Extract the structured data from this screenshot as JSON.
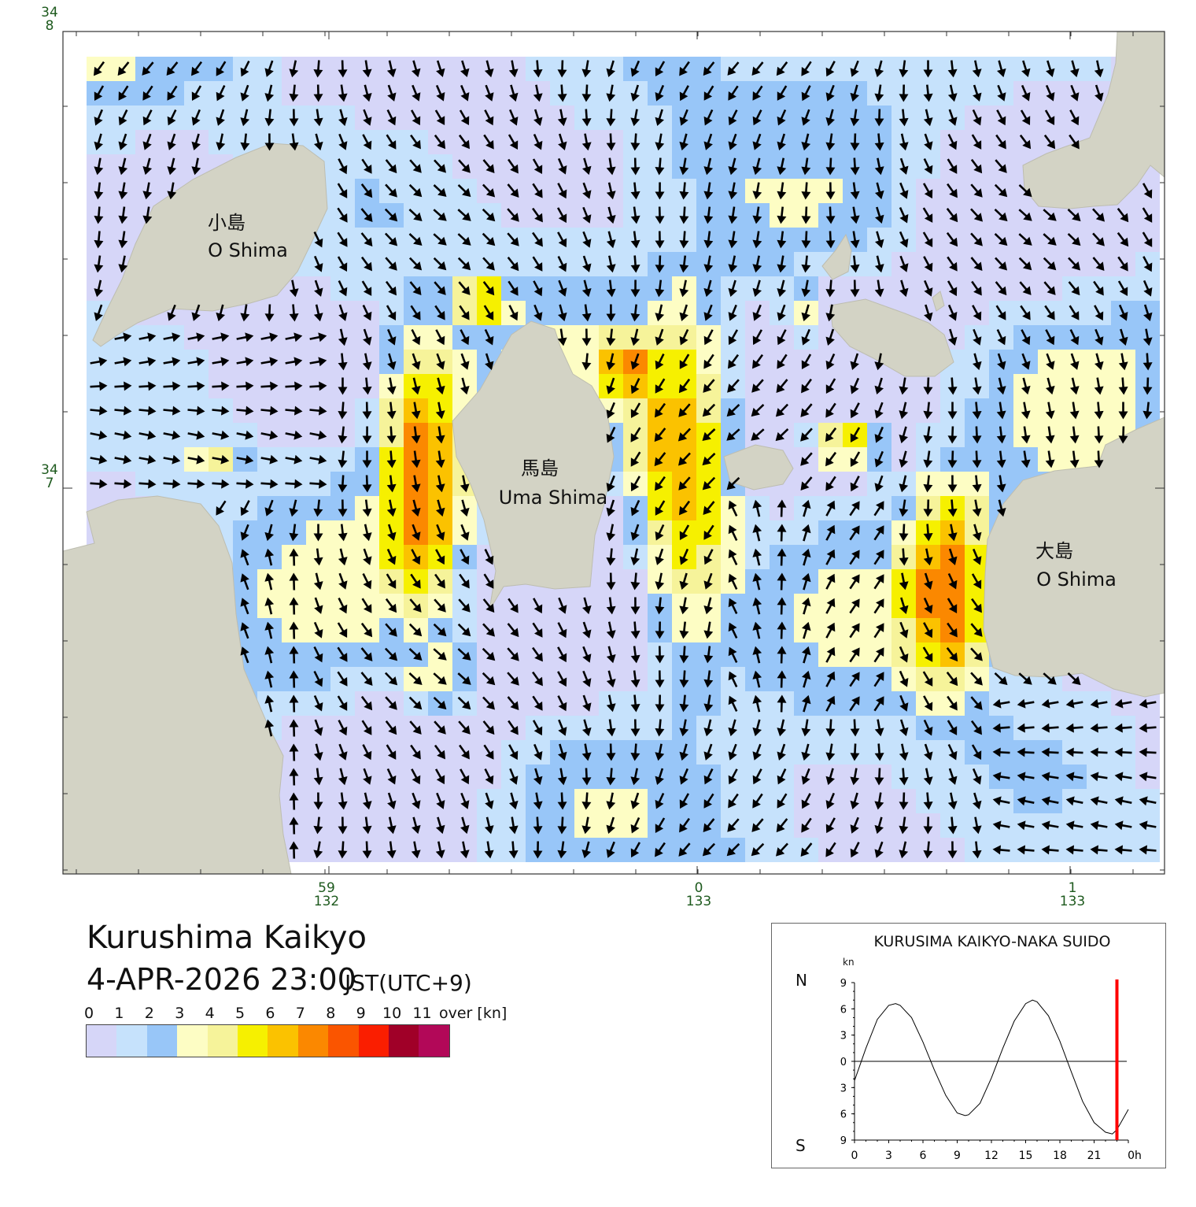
{
  "map": {
    "title": "Kurushima Kaikyo",
    "datetime": "4-APR-2026 23:00",
    "timezone": "JST(UTC+9)",
    "lat_labels": [
      {
        "deg": "34",
        "min": "8",
        "label_id": "lat-34-8"
      },
      {
        "deg": "34",
        "min": "7",
        "label_id": "lat-34-7"
      }
    ],
    "lon_labels": [
      {
        "min": "59",
        "deg": "132"
      },
      {
        "min": "0",
        "deg": "133"
      },
      {
        "min": "1",
        "deg": "133"
      }
    ],
    "places": [
      {
        "ja": "小島",
        "en": "O Shima"
      },
      {
        "ja": "馬島",
        "en": "Uma Shima"
      },
      {
        "ja": "大島",
        "en": "O Shima"
      }
    ],
    "land_color": "#d3d3c5",
    "arrow_color": "#000000"
  },
  "legend": {
    "labels": [
      "0",
      "1",
      "2",
      "3",
      "4",
      "5",
      "6",
      "7",
      "8",
      "9",
      "10",
      "11"
    ],
    "over_label": "over",
    "unit": "[kn]",
    "colors": [
      "#d6d6f8",
      "#c6e2fc",
      "#98c6f8",
      "#fdfdc4",
      "#f6f39a",
      "#f6f000",
      "#fbc200",
      "#fb8800",
      "#fa5500",
      "#fa1e00",
      "#a00028",
      "#b20858"
    ]
  },
  "tide_chart": {
    "title": "KURUSIMA KAIKYO-NAKA SUIDO",
    "unit": "kn",
    "north_label": "N",
    "south_label": "S",
    "y_ticks": [
      "9",
      "6",
      "3",
      "0",
      "3",
      "6",
      "9"
    ],
    "x_ticks": [
      "0",
      "3",
      "6",
      "9",
      "12",
      "15",
      "18",
      "21",
      "0h"
    ],
    "current_marker_color": "#ff0000"
  },
  "chart_data": {
    "type": "line",
    "title": "KURUSIMA KAIKYO-NAKA SUIDO",
    "xlabel": "h",
    "ylabel": "kn",
    "xlim": [
      0,
      24
    ],
    "ylim": [
      -9,
      9
    ],
    "series": [
      {
        "x": [
          0,
          1,
          2,
          3,
          3.6,
          4,
          5,
          6,
          7,
          8,
          9,
          9.7,
          10,
          11,
          12,
          13,
          14,
          15,
          15.6,
          16,
          17,
          18,
          19,
          20,
          21,
          22,
          22.6,
          23,
          24
        ],
        "values": [
          -2.2,
          1.5,
          4.8,
          6.4,
          6.6,
          6.4,
          5.0,
          2.2,
          -1.0,
          -3.9,
          -5.9,
          -6.2,
          -6.1,
          -4.8,
          -1.9,
          1.5,
          4.6,
          6.6,
          7.0,
          6.8,
          5.2,
          2.3,
          -1.2,
          -4.6,
          -7.0,
          -8.1,
          -8.3,
          -7.8,
          -5.5
        ]
      }
    ],
    "current_time": 23
  }
}
